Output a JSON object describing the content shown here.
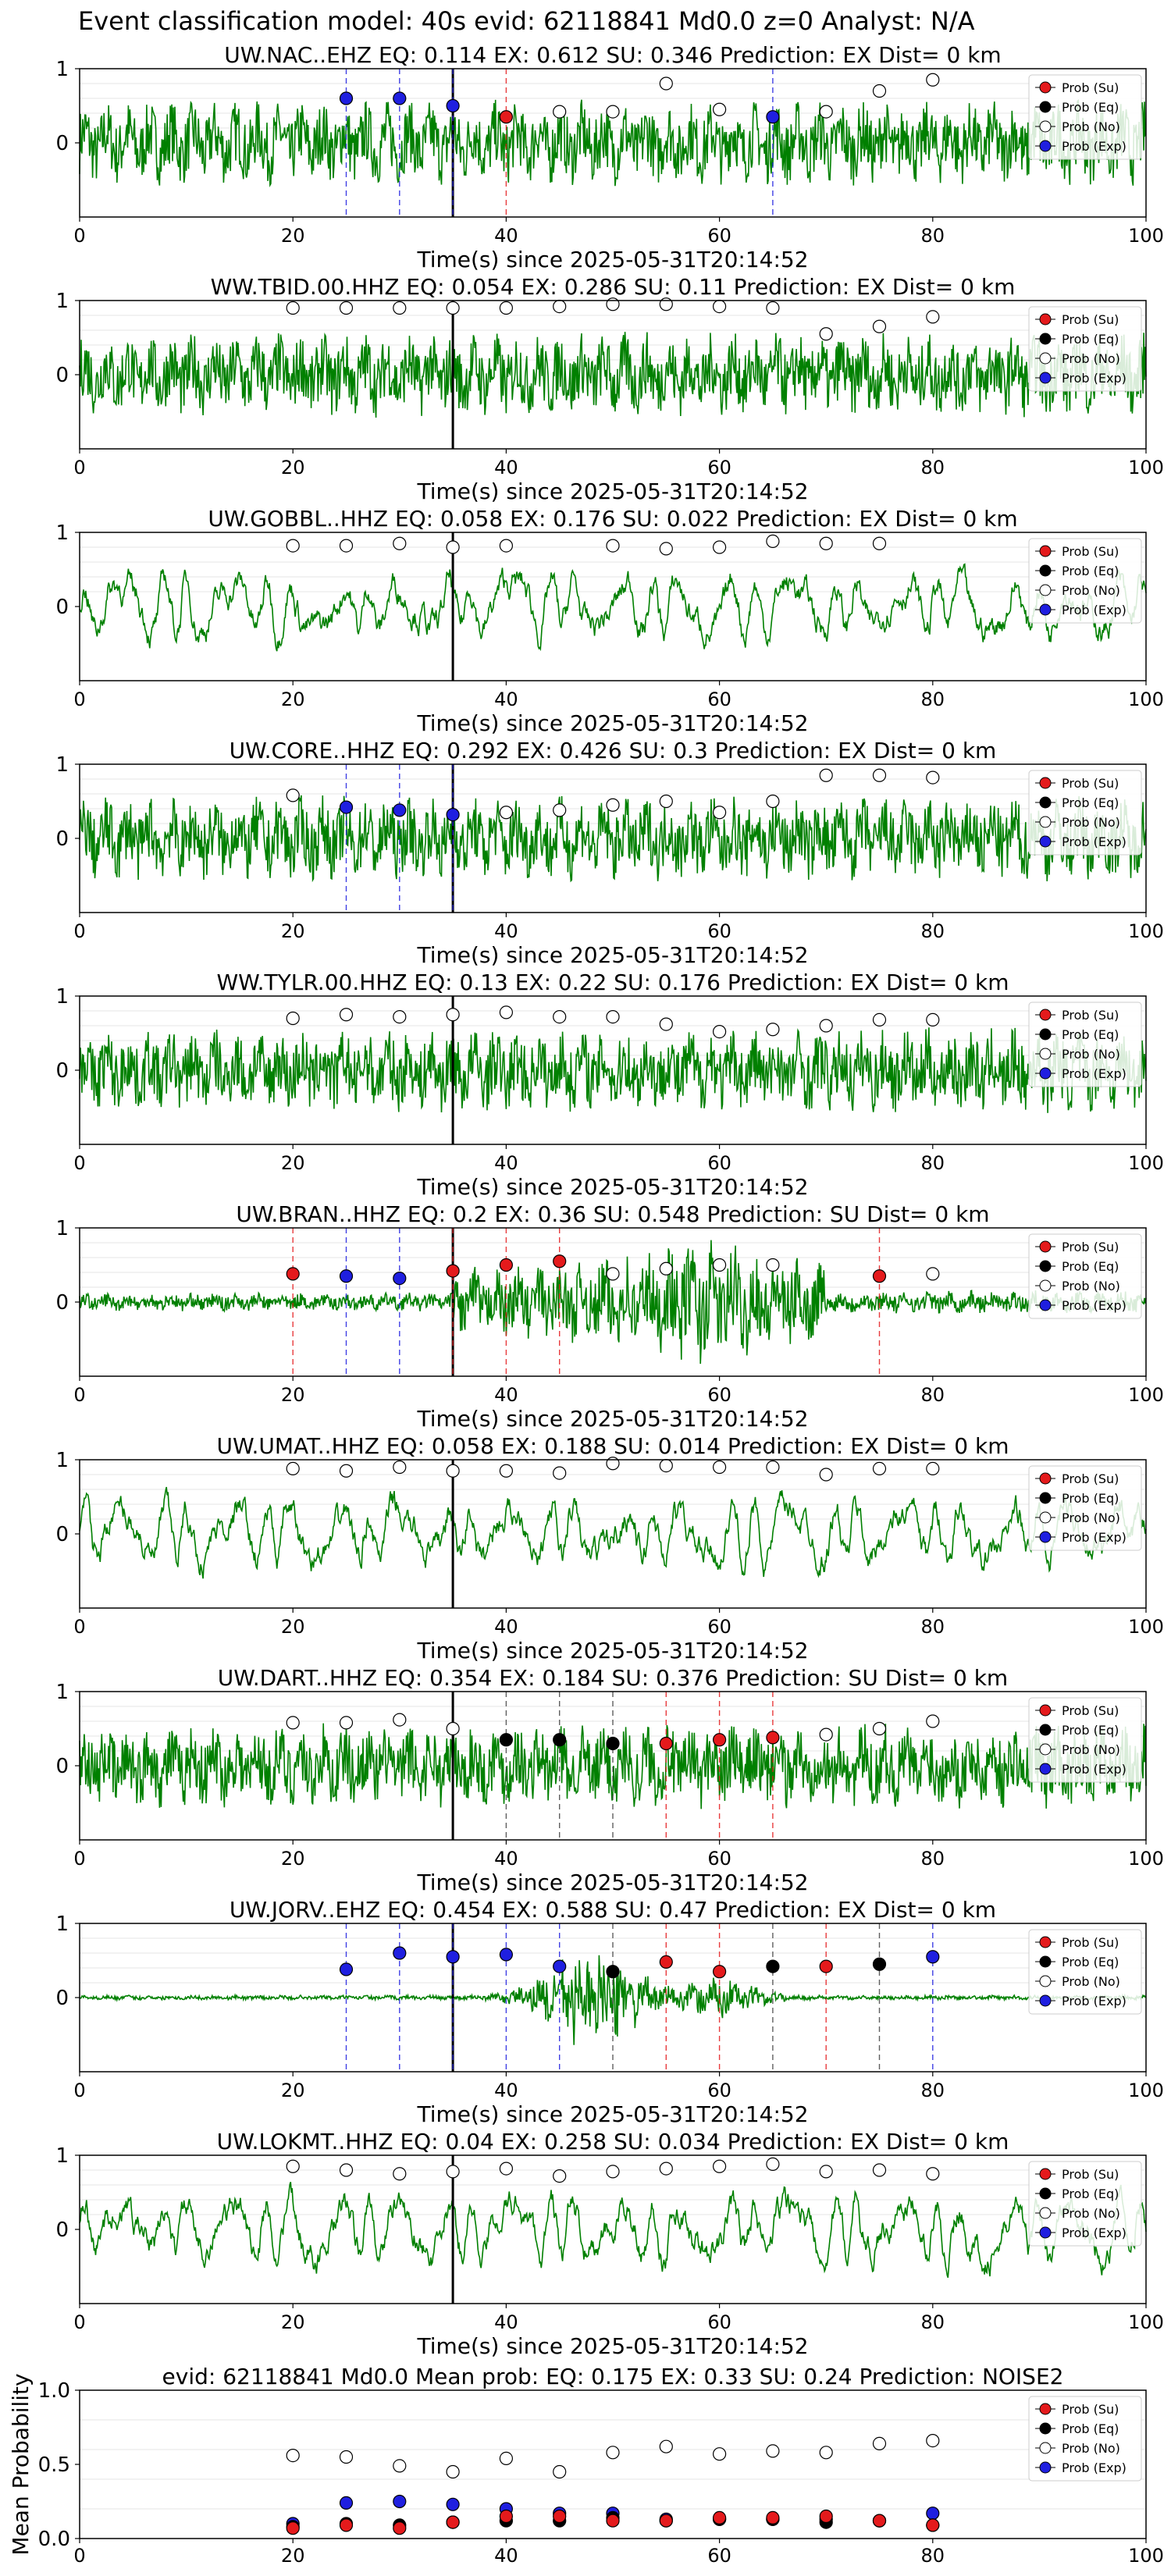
{
  "figure_title": "Event classification model: 40s evid: 62118841 Md0.0 z=0 Analyst: N/A",
  "legend_labels": [
    "Prob (Su)",
    "Prob (Eq)",
    "Prob (No)",
    "Prob (Exp)"
  ],
  "colors": {
    "su": "#e41a1c",
    "eq": "#000000",
    "no": "#ffffff",
    "exp": "#1f1fe0",
    "trace": "#008000",
    "grid": "#e6e6e6"
  },
  "chart_data": [
    {
      "type": "line",
      "title": "UW.NAC..EHZ   EQ: 0.114  EX: 0.612  SU: 0.346   Prediction: EX    Dist= 0 km",
      "xlabel": "Time(s) since 2025-05-31T20:14:52",
      "xlim": [
        0,
        100
      ],
      "ylim": [
        -1,
        1
      ],
      "xticks": [
        "0",
        "20",
        "40",
        "60",
        "80",
        "100"
      ],
      "yticks": [
        "1",
        "0"
      ],
      "trace_profile": "uniform",
      "onset": 35,
      "points": [
        {
          "x": 25,
          "y": 0.6,
          "c": "exp"
        },
        {
          "x": 30,
          "y": 0.6,
          "c": "exp"
        },
        {
          "x": 35,
          "y": 0.5,
          "c": "exp"
        },
        {
          "x": 40,
          "y": 0.35,
          "c": "su"
        },
        {
          "x": 45,
          "y": 0.42,
          "c": "no"
        },
        {
          "x": 50,
          "y": 0.42,
          "c": "no"
        },
        {
          "x": 55,
          "y": 0.8,
          "c": "no"
        },
        {
          "x": 60,
          "y": 0.45,
          "c": "no"
        },
        {
          "x": 65,
          "y": 0.35,
          "c": "exp"
        },
        {
          "x": 70,
          "y": 0.42,
          "c": "no"
        },
        {
          "x": 75,
          "y": 0.7,
          "c": "no"
        },
        {
          "x": 80,
          "y": 0.85,
          "c": "no"
        }
      ]
    },
    {
      "type": "line",
      "title": "WW.TBID.00.HHZ   EQ: 0.054  EX: 0.286  SU: 0.11   Prediction: EX    Dist= 0 km",
      "xlabel": "Time(s) since 2025-05-31T20:14:52",
      "xlim": [
        0,
        100
      ],
      "ylim": [
        -1,
        1
      ],
      "xticks": [
        "0",
        "20",
        "40",
        "60",
        "80",
        "100"
      ],
      "yticks": [
        "1",
        "0"
      ],
      "trace_profile": "uniform",
      "onset": 35,
      "points": [
        {
          "x": 20,
          "y": 0.9,
          "c": "no"
        },
        {
          "x": 25,
          "y": 0.9,
          "c": "no"
        },
        {
          "x": 30,
          "y": 0.9,
          "c": "no"
        },
        {
          "x": 35,
          "y": 0.9,
          "c": "no"
        },
        {
          "x": 40,
          "y": 0.9,
          "c": "no"
        },
        {
          "x": 45,
          "y": 0.92,
          "c": "no"
        },
        {
          "x": 50,
          "y": 0.95,
          "c": "no"
        },
        {
          "x": 55,
          "y": 0.95,
          "c": "no"
        },
        {
          "x": 60,
          "y": 0.92,
          "c": "no"
        },
        {
          "x": 65,
          "y": 0.9,
          "c": "no"
        },
        {
          "x": 70,
          "y": 0.55,
          "c": "no"
        },
        {
          "x": 75,
          "y": 0.65,
          "c": "no"
        },
        {
          "x": 80,
          "y": 0.78,
          "c": "no"
        }
      ]
    },
    {
      "type": "line",
      "title": "UW.GOBBL..HHZ   EQ: 0.058  EX: 0.176  SU: 0.022   Prediction: EX    Dist= 0 km",
      "xlabel": "Time(s) since 2025-05-31T20:14:52",
      "xlim": [
        0,
        100
      ],
      "ylim": [
        -1,
        1
      ],
      "xticks": [
        "0",
        "20",
        "40",
        "60",
        "80",
        "100"
      ],
      "yticks": [
        "1",
        "0"
      ],
      "trace_profile": "lowfreq",
      "onset": 35,
      "points": [
        {
          "x": 20,
          "y": 0.82,
          "c": "no"
        },
        {
          "x": 25,
          "y": 0.82,
          "c": "no"
        },
        {
          "x": 30,
          "y": 0.85,
          "c": "no"
        },
        {
          "x": 35,
          "y": 0.8,
          "c": "no"
        },
        {
          "x": 40,
          "y": 0.82,
          "c": "no"
        },
        {
          "x": 50,
          "y": 0.82,
          "c": "no"
        },
        {
          "x": 55,
          "y": 0.78,
          "c": "no"
        },
        {
          "x": 60,
          "y": 0.8,
          "c": "no"
        },
        {
          "x": 65,
          "y": 0.88,
          "c": "no"
        },
        {
          "x": 70,
          "y": 0.85,
          "c": "no"
        },
        {
          "x": 75,
          "y": 0.85,
          "c": "no"
        }
      ]
    },
    {
      "type": "line",
      "title": "UW.CORE..HHZ   EQ: 0.292  EX: 0.426  SU: 0.3   Prediction: EX    Dist= 0 km",
      "xlabel": "Time(s) since 2025-05-31T20:14:52",
      "xlim": [
        0,
        100
      ],
      "ylim": [
        -1,
        1
      ],
      "xticks": [
        "0",
        "20",
        "40",
        "60",
        "80",
        "100"
      ],
      "yticks": [
        "1",
        "0"
      ],
      "trace_profile": "uniform",
      "onset": 35,
      "points": [
        {
          "x": 20,
          "y": 0.58,
          "c": "no"
        },
        {
          "x": 25,
          "y": 0.42,
          "c": "exp"
        },
        {
          "x": 30,
          "y": 0.38,
          "c": "exp"
        },
        {
          "x": 35,
          "y": 0.32,
          "c": "exp"
        },
        {
          "x": 40,
          "y": 0.35,
          "c": "no"
        },
        {
          "x": 45,
          "y": 0.38,
          "c": "no"
        },
        {
          "x": 50,
          "y": 0.45,
          "c": "no"
        },
        {
          "x": 55,
          "y": 0.5,
          "c": "no"
        },
        {
          "x": 60,
          "y": 0.35,
          "c": "no"
        },
        {
          "x": 65,
          "y": 0.5,
          "c": "no"
        },
        {
          "x": 70,
          "y": 0.85,
          "c": "no"
        },
        {
          "x": 75,
          "y": 0.85,
          "c": "no"
        },
        {
          "x": 80,
          "y": 0.82,
          "c": "no"
        }
      ]
    },
    {
      "type": "line",
      "title": "WW.TYLR.00.HHZ   EQ: 0.13  EX: 0.22  SU: 0.176   Prediction: EX    Dist= 0 km",
      "xlabel": "Time(s) since 2025-05-31T20:14:52",
      "xlim": [
        0,
        100
      ],
      "ylim": [
        -1,
        1
      ],
      "xticks": [
        "0",
        "20",
        "40",
        "60",
        "80",
        "100"
      ],
      "yticks": [
        "1",
        "0"
      ],
      "trace_profile": "uniform",
      "onset": 35,
      "points": [
        {
          "x": 20,
          "y": 0.7,
          "c": "no"
        },
        {
          "x": 25,
          "y": 0.75,
          "c": "no"
        },
        {
          "x": 30,
          "y": 0.72,
          "c": "no"
        },
        {
          "x": 35,
          "y": 0.75,
          "c": "no"
        },
        {
          "x": 40,
          "y": 0.78,
          "c": "no"
        },
        {
          "x": 45,
          "y": 0.72,
          "c": "no"
        },
        {
          "x": 50,
          "y": 0.72,
          "c": "no"
        },
        {
          "x": 55,
          "y": 0.62,
          "c": "no"
        },
        {
          "x": 60,
          "y": 0.52,
          "c": "no"
        },
        {
          "x": 65,
          "y": 0.55,
          "c": "no"
        },
        {
          "x": 70,
          "y": 0.6,
          "c": "no"
        },
        {
          "x": 75,
          "y": 0.68,
          "c": "no"
        },
        {
          "x": 80,
          "y": 0.68,
          "c": "no"
        }
      ]
    },
    {
      "type": "line",
      "title": "UW.BRAN..HHZ   EQ: 0.2  EX: 0.36  SU: 0.548   Prediction: SU    Dist= 0 km",
      "xlabel": "Time(s) since 2025-05-31T20:14:52",
      "xlim": [
        0,
        100
      ],
      "ylim": [
        -1,
        1
      ],
      "xticks": [
        "0",
        "20",
        "40",
        "60",
        "80",
        "100"
      ],
      "yticks": [
        "1",
        "0"
      ],
      "trace_profile": "event",
      "onset": 35,
      "points": [
        {
          "x": 20,
          "y": 0.38,
          "c": "su"
        },
        {
          "x": 25,
          "y": 0.35,
          "c": "exp"
        },
        {
          "x": 30,
          "y": 0.32,
          "c": "exp"
        },
        {
          "x": 35,
          "y": 0.42,
          "c": "su"
        },
        {
          "x": 40,
          "y": 0.5,
          "c": "su"
        },
        {
          "x": 45,
          "y": 0.55,
          "c": "su"
        },
        {
          "x": 50,
          "y": 0.38,
          "c": "no"
        },
        {
          "x": 55,
          "y": 0.45,
          "c": "no"
        },
        {
          "x": 60,
          "y": 0.5,
          "c": "no"
        },
        {
          "x": 65,
          "y": 0.5,
          "c": "no"
        },
        {
          "x": 75,
          "y": 0.35,
          "c": "su"
        },
        {
          "x": 80,
          "y": 0.38,
          "c": "no"
        }
      ]
    },
    {
      "type": "line",
      "title": "UW.UMAT..HHZ   EQ: 0.058  EX: 0.188  SU: 0.014   Prediction: EX    Dist= 0 km",
      "xlabel": "Time(s) since 2025-05-31T20:14:52",
      "xlim": [
        0,
        100
      ],
      "ylim": [
        -1,
        1
      ],
      "xticks": [
        "0",
        "20",
        "40",
        "60",
        "80",
        "100"
      ],
      "yticks": [
        "1",
        "0"
      ],
      "trace_profile": "lowfreq",
      "onset": 35,
      "points": [
        {
          "x": 20,
          "y": 0.88,
          "c": "no"
        },
        {
          "x": 25,
          "y": 0.85,
          "c": "no"
        },
        {
          "x": 30,
          "y": 0.9,
          "c": "no"
        },
        {
          "x": 35,
          "y": 0.85,
          "c": "no"
        },
        {
          "x": 40,
          "y": 0.85,
          "c": "no"
        },
        {
          "x": 45,
          "y": 0.82,
          "c": "no"
        },
        {
          "x": 50,
          "y": 0.95,
          "c": "no"
        },
        {
          "x": 55,
          "y": 0.92,
          "c": "no"
        },
        {
          "x": 60,
          "y": 0.9,
          "c": "no"
        },
        {
          "x": 65,
          "y": 0.9,
          "c": "no"
        },
        {
          "x": 70,
          "y": 0.8,
          "c": "no"
        },
        {
          "x": 75,
          "y": 0.88,
          "c": "no"
        },
        {
          "x": 80,
          "y": 0.88,
          "c": "no"
        }
      ]
    },
    {
      "type": "line",
      "title": "UW.DART..HHZ   EQ: 0.354  EX: 0.184  SU: 0.376   Prediction: SU    Dist= 0 km",
      "xlabel": "Time(s) since 2025-05-31T20:14:52",
      "xlim": [
        0,
        100
      ],
      "ylim": [
        -1,
        1
      ],
      "xticks": [
        "0",
        "20",
        "40",
        "60",
        "80",
        "100"
      ],
      "yticks": [
        "1",
        "0"
      ],
      "trace_profile": "uniform",
      "onset": 35,
      "points": [
        {
          "x": 20,
          "y": 0.58,
          "c": "no"
        },
        {
          "x": 25,
          "y": 0.58,
          "c": "no"
        },
        {
          "x": 30,
          "y": 0.62,
          "c": "no"
        },
        {
          "x": 35,
          "y": 0.5,
          "c": "no"
        },
        {
          "x": 40,
          "y": 0.35,
          "c": "eq"
        },
        {
          "x": 45,
          "y": 0.35,
          "c": "eq"
        },
        {
          "x": 50,
          "y": 0.3,
          "c": "eq"
        },
        {
          "x": 55,
          "y": 0.3,
          "c": "su"
        },
        {
          "x": 60,
          "y": 0.35,
          "c": "su"
        },
        {
          "x": 65,
          "y": 0.38,
          "c": "su"
        },
        {
          "x": 70,
          "y": 0.42,
          "c": "no"
        },
        {
          "x": 75,
          "y": 0.5,
          "c": "no"
        },
        {
          "x": 80,
          "y": 0.6,
          "c": "no"
        }
      ]
    },
    {
      "type": "line",
      "title": "UW.JORV..EHZ   EQ: 0.454  EX: 0.588  SU: 0.47   Prediction: EX    Dist= 0 km",
      "xlabel": "Time(s) since 2025-05-31T20:14:52",
      "xlim": [
        0,
        100
      ],
      "ylim": [
        -1,
        1
      ],
      "xticks": [
        "0",
        "20",
        "40",
        "60",
        "80",
        "100"
      ],
      "yticks": [
        "1",
        "0"
      ],
      "trace_profile": "quiet",
      "onset": 35,
      "points": [
        {
          "x": 25,
          "y": 0.38,
          "c": "exp"
        },
        {
          "x": 30,
          "y": 0.6,
          "c": "exp"
        },
        {
          "x": 35,
          "y": 0.55,
          "c": "exp"
        },
        {
          "x": 40,
          "y": 0.58,
          "c": "exp"
        },
        {
          "x": 45,
          "y": 0.42,
          "c": "exp"
        },
        {
          "x": 50,
          "y": 0.35,
          "c": "eq"
        },
        {
          "x": 55,
          "y": 0.48,
          "c": "su"
        },
        {
          "x": 60,
          "y": 0.35,
          "c": "su"
        },
        {
          "x": 65,
          "y": 0.42,
          "c": "eq"
        },
        {
          "x": 70,
          "y": 0.42,
          "c": "su"
        },
        {
          "x": 75,
          "y": 0.45,
          "c": "eq"
        },
        {
          "x": 80,
          "y": 0.55,
          "c": "exp"
        }
      ]
    },
    {
      "type": "line",
      "title": "UW.LOKMT..HHZ   EQ: 0.04  EX: 0.258  SU: 0.034   Prediction: EX    Dist= 0 km",
      "xlabel": "Time(s) since 2025-05-31T20:14:52",
      "xlim": [
        0,
        100
      ],
      "ylim": [
        -1,
        1
      ],
      "xticks": [
        "0",
        "20",
        "40",
        "60",
        "80",
        "100"
      ],
      "yticks": [
        "1",
        "0"
      ],
      "trace_profile": "lowfreq",
      "onset": 35,
      "points": [
        {
          "x": 20,
          "y": 0.85,
          "c": "no"
        },
        {
          "x": 25,
          "y": 0.8,
          "c": "no"
        },
        {
          "x": 30,
          "y": 0.75,
          "c": "no"
        },
        {
          "x": 35,
          "y": 0.78,
          "c": "no"
        },
        {
          "x": 40,
          "y": 0.82,
          "c": "no"
        },
        {
          "x": 45,
          "y": 0.72,
          "c": "no"
        },
        {
          "x": 50,
          "y": 0.78,
          "c": "no"
        },
        {
          "x": 55,
          "y": 0.82,
          "c": "no"
        },
        {
          "x": 60,
          "y": 0.85,
          "c": "no"
        },
        {
          "x": 65,
          "y": 0.88,
          "c": "no"
        },
        {
          "x": 70,
          "y": 0.78,
          "c": "no"
        },
        {
          "x": 75,
          "y": 0.8,
          "c": "no"
        },
        {
          "x": 80,
          "y": 0.75,
          "c": "no"
        }
      ]
    },
    {
      "type": "scatter",
      "title": "evid: 62118841  Md0.0   Mean prob:   EQ: 0.175  EX: 0.33  SU: 0.24   Prediction: NOISE2",
      "ylabel": "Mean Probability",
      "xlim": [
        0,
        100
      ],
      "ylim": [
        0,
        1
      ],
      "xticks": [
        "0",
        "20",
        "40",
        "60",
        "80",
        "100"
      ],
      "yticks": [
        "1.0",
        "0.5",
        "0.0"
      ],
      "x": [
        20,
        25,
        30,
        35,
        40,
        45,
        50,
        55,
        60,
        65,
        70,
        75,
        80
      ],
      "series": [
        {
          "name": "Prob (No)",
          "c": "no",
          "values": [
            0.56,
            0.55,
            0.49,
            0.45,
            0.54,
            0.45,
            0.58,
            0.62,
            0.57,
            0.59,
            0.58,
            0.64,
            0.66
          ]
        },
        {
          "name": "Prob (Exp)",
          "c": "exp",
          "values": [
            0.1,
            0.24,
            0.25,
            0.23,
            0.2,
            0.17,
            0.17,
            0.13,
            0.13,
            0.13,
            0.13,
            0.12,
            0.17
          ]
        },
        {
          "name": "Prob (Eq)",
          "c": "eq",
          "values": [
            0.08,
            0.1,
            0.09,
            0.11,
            0.12,
            0.12,
            0.14,
            0.12,
            0.13,
            0.13,
            0.11,
            0.12,
            0.09
          ]
        },
        {
          "name": "Prob (Su)",
          "c": "su",
          "values": [
            0.07,
            0.09,
            0.07,
            0.11,
            0.15,
            0.15,
            0.12,
            0.12,
            0.14,
            0.14,
            0.15,
            0.12,
            0.09
          ]
        }
      ]
    }
  ]
}
